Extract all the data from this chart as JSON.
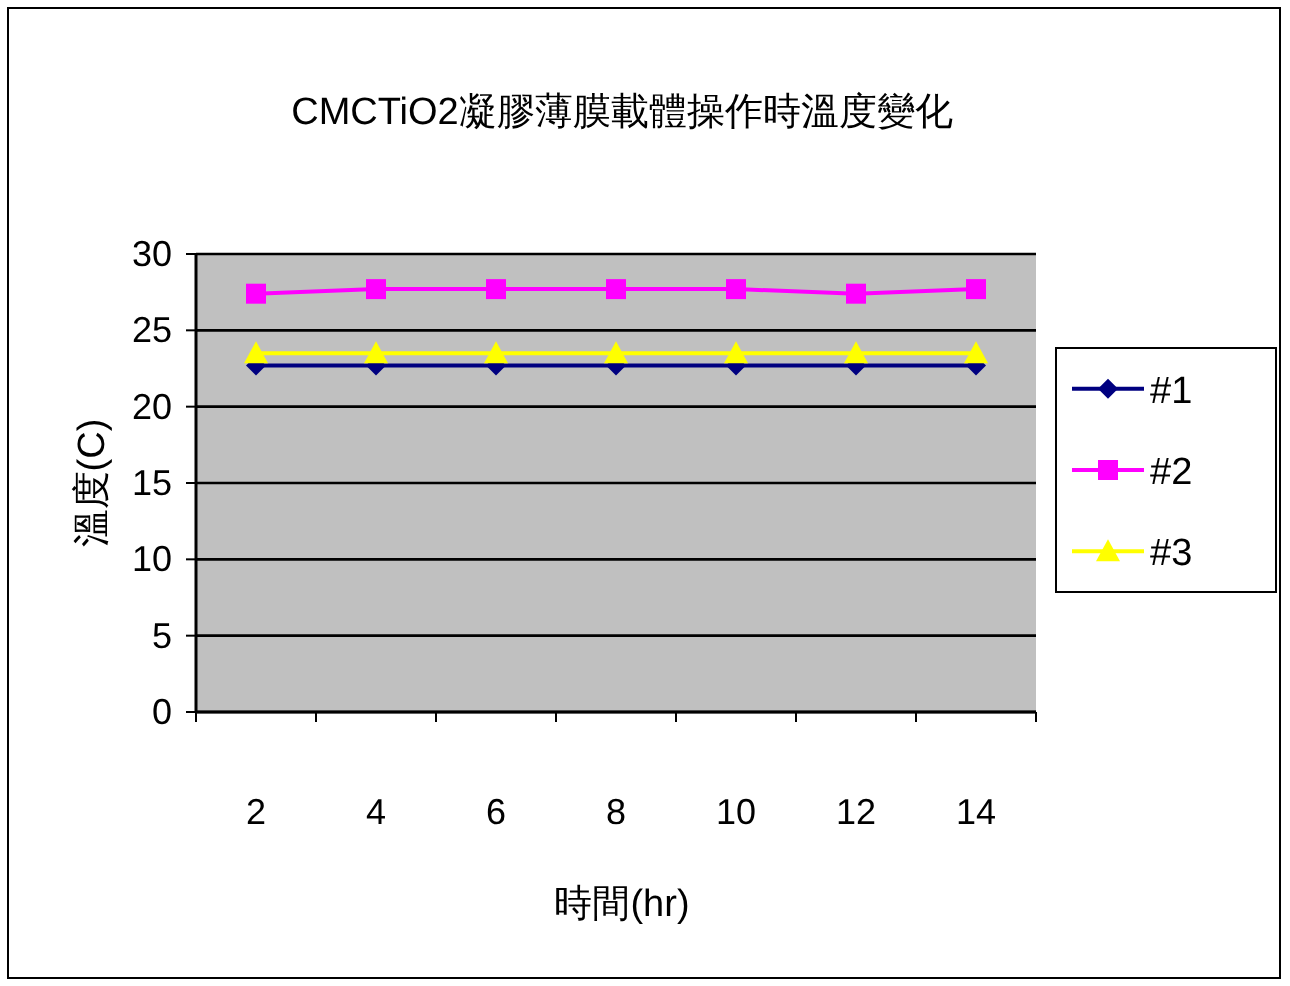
{
  "chart_data": {
    "type": "line",
    "title": "CMCTiO2凝膠薄膜載體操作時溫度變化",
    "xlabel": "時間(hr)",
    "ylabel": "溫度(C)",
    "categories": [
      "2",
      "4",
      "6",
      "8",
      "10",
      "12",
      "14"
    ],
    "series": [
      {
        "name": "#1",
        "color": "#000080",
        "marker": "diamond",
        "values": [
          22.7,
          22.7,
          22.7,
          22.7,
          22.7,
          22.7,
          22.7
        ]
      },
      {
        "name": "#2",
        "color": "#ff00ff",
        "marker": "square",
        "values": [
          27.4,
          27.7,
          27.7,
          27.7,
          27.7,
          27.4,
          27.7
        ]
      },
      {
        "name": "#3",
        "color": "#ffff00",
        "marker": "triangle",
        "values": [
          23.5,
          23.5,
          23.5,
          23.5,
          23.5,
          23.5,
          23.5
        ]
      }
    ],
    "ylim": [
      0,
      30
    ],
    "yticks": [
      0,
      5,
      10,
      15,
      20,
      25,
      30
    ],
    "grid": "y",
    "legend": "right"
  }
}
